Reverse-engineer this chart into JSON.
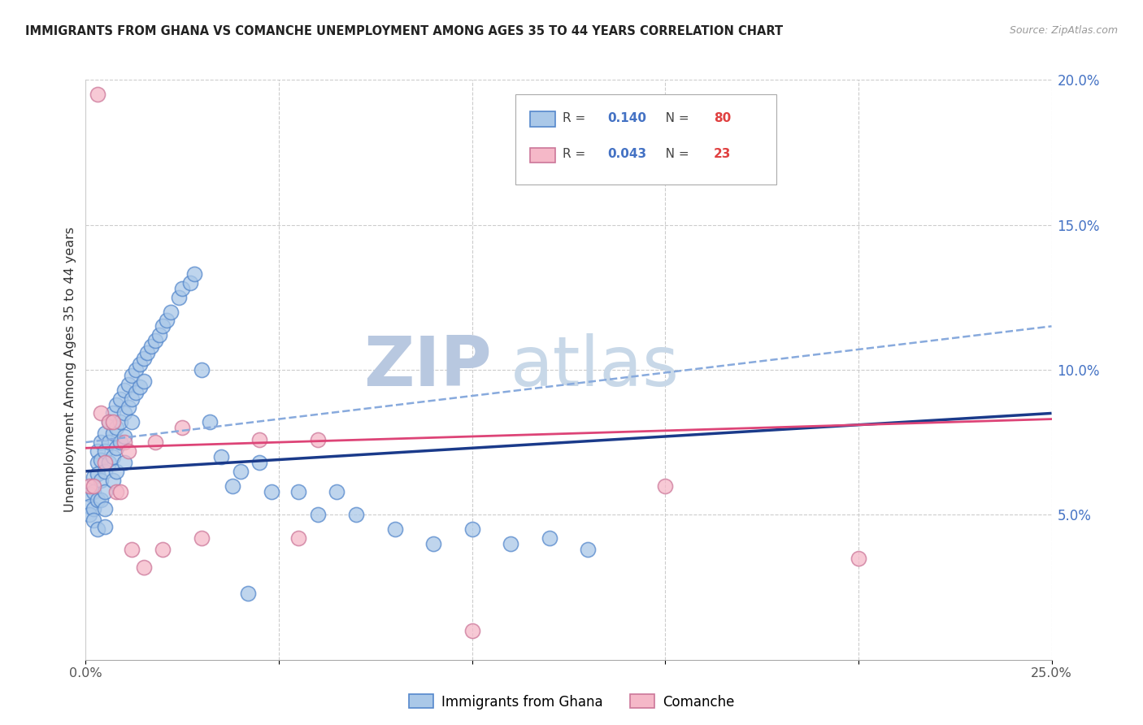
{
  "title": "IMMIGRANTS FROM GHANA VS COMANCHE UNEMPLOYMENT AMONG AGES 35 TO 44 YEARS CORRELATION CHART",
  "source": "Source: ZipAtlas.com",
  "ylabel": "Unemployment Among Ages 35 to 44 years",
  "xlim": [
    0.0,
    0.25
  ],
  "ylim": [
    0.0,
    0.2
  ],
  "xticks": [
    0.0,
    0.05,
    0.1,
    0.15,
    0.2,
    0.25
  ],
  "yticks_right": [
    0.05,
    0.1,
    0.15,
    0.2
  ],
  "xticklabels": [
    "0.0%",
    "",
    "",
    "",
    "",
    "25.0%"
  ],
  "yticklabels_right": [
    "5.0%",
    "10.0%",
    "15.0%",
    "20.0%"
  ],
  "ghana_color": "#aac8e8",
  "ghana_edge_color": "#5588cc",
  "comanche_color": "#f5b8c8",
  "comanche_edge_color": "#cc7799",
  "trend_ghana_solid_color": "#1a3a8a",
  "trend_ghana_dash_color": "#88aadd",
  "trend_comanche_color": "#dd4477",
  "watermark_zip_color": "#c8d8f0",
  "watermark_atlas_color": "#c8d8f0",
  "legend_r_ghana": "0.140",
  "legend_n_ghana": "80",
  "legend_r_comanche": "0.043",
  "legend_n_comanche": "23",
  "ghana_x": [
    0.001,
    0.001,
    0.001,
    0.002,
    0.002,
    0.002,
    0.002,
    0.003,
    0.003,
    0.003,
    0.003,
    0.003,
    0.004,
    0.004,
    0.004,
    0.004,
    0.005,
    0.005,
    0.005,
    0.005,
    0.005,
    0.005,
    0.006,
    0.006,
    0.006,
    0.007,
    0.007,
    0.007,
    0.007,
    0.008,
    0.008,
    0.008,
    0.008,
    0.009,
    0.009,
    0.009,
    0.01,
    0.01,
    0.01,
    0.01,
    0.011,
    0.011,
    0.012,
    0.012,
    0.012,
    0.013,
    0.013,
    0.014,
    0.014,
    0.015,
    0.015,
    0.016,
    0.017,
    0.018,
    0.019,
    0.02,
    0.021,
    0.022,
    0.024,
    0.025,
    0.027,
    0.028,
    0.03,
    0.032,
    0.035,
    0.038,
    0.04,
    0.042,
    0.045,
    0.048,
    0.055,
    0.06,
    0.065,
    0.07,
    0.08,
    0.09,
    0.1,
    0.11,
    0.12,
    0.13
  ],
  "ghana_y": [
    0.057,
    0.053,
    0.05,
    0.063,
    0.058,
    0.052,
    0.048,
    0.072,
    0.068,
    0.064,
    0.055,
    0.045,
    0.075,
    0.069,
    0.062,
    0.055,
    0.078,
    0.072,
    0.065,
    0.058,
    0.052,
    0.046,
    0.082,
    0.075,
    0.068,
    0.085,
    0.078,
    0.07,
    0.062,
    0.088,
    0.08,
    0.073,
    0.065,
    0.09,
    0.082,
    0.075,
    0.093,
    0.085,
    0.077,
    0.068,
    0.095,
    0.087,
    0.098,
    0.09,
    0.082,
    0.1,
    0.092,
    0.102,
    0.094,
    0.104,
    0.096,
    0.106,
    0.108,
    0.11,
    0.112,
    0.115,
    0.117,
    0.12,
    0.125,
    0.128,
    0.13,
    0.133,
    0.1,
    0.082,
    0.07,
    0.06,
    0.065,
    0.023,
    0.068,
    0.058,
    0.058,
    0.05,
    0.058,
    0.05,
    0.045,
    0.04,
    0.045,
    0.04,
    0.042,
    0.038
  ],
  "comanche_x": [
    0.001,
    0.002,
    0.003,
    0.004,
    0.005,
    0.006,
    0.007,
    0.008,
    0.009,
    0.01,
    0.011,
    0.012,
    0.015,
    0.018,
    0.02,
    0.025,
    0.03,
    0.045,
    0.055,
    0.06,
    0.1,
    0.15,
    0.2
  ],
  "comanche_y": [
    0.06,
    0.06,
    0.195,
    0.085,
    0.068,
    0.082,
    0.082,
    0.058,
    0.058,
    0.075,
    0.072,
    0.038,
    0.032,
    0.075,
    0.038,
    0.08,
    0.042,
    0.076,
    0.042,
    0.076,
    0.01,
    0.06,
    0.035
  ]
}
